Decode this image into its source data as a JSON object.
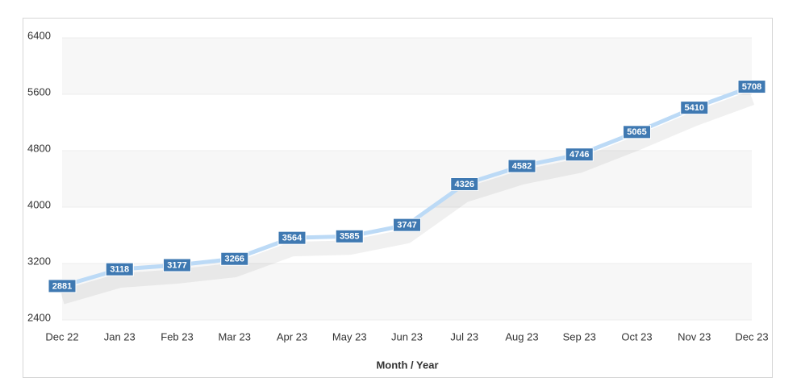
{
  "chart_data": {
    "type": "line",
    "x_label": "Month / Year",
    "categories": [
      "Dec 22",
      "Jan 23",
      "Feb 23",
      "Mar 23",
      "Apr 23",
      "May 23",
      "Jun 23",
      "Jul 23",
      "Aug 23",
      "Sep 23",
      "Oct 23",
      "Nov 23",
      "Dec 23"
    ],
    "values": [
      2881,
      3118,
      3177,
      3266,
      3564,
      3585,
      3747,
      4326,
      4582,
      4746,
      5065,
      5410,
      5708
    ],
    "color": "#bcdaf6",
    "label_color": "#3f79b2",
    "ylim": [
      2400,
      6400
    ],
    "yticks": [
      2400,
      3200,
      4000,
      4800,
      5600,
      6400
    ],
    "grid": true
  }
}
